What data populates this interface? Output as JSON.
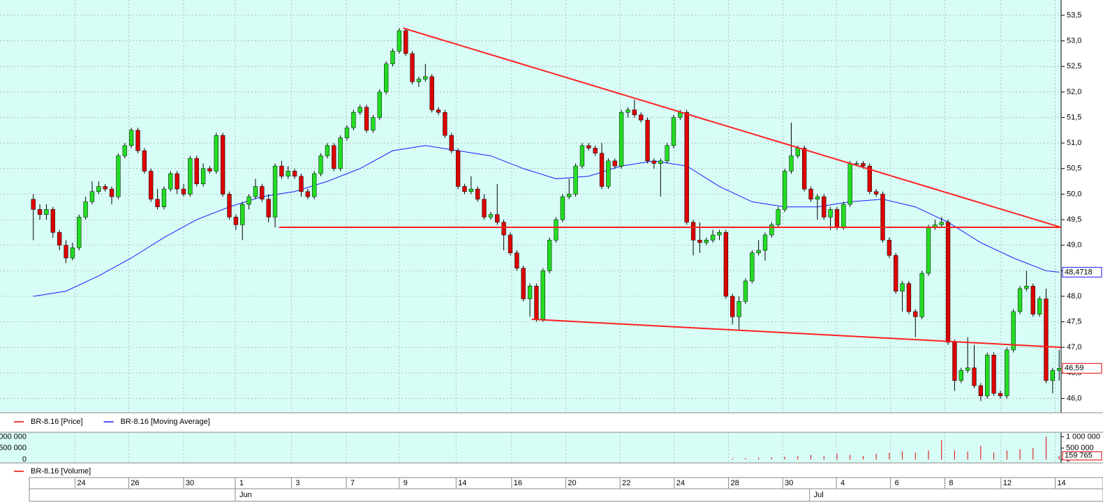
{
  "chart_data": {
    "type": "candlestick",
    "up_color": "#22dd22",
    "down_color": "#dd0000",
    "ylim": [
      45.72,
      53.8
    ],
    "yticks": [
      {
        "value": 46.0,
        "label": "46,0"
      },
      {
        "value": 46.5,
        "label": "46,5"
      },
      {
        "value": 47.0,
        "label": "47,0"
      },
      {
        "value": 47.5,
        "label": "47,5"
      },
      {
        "value": 48.0,
        "label": "48,0"
      },
      {
        "value": 48.5,
        "label": "48,5"
      },
      {
        "value": 49.0,
        "label": "49,0"
      },
      {
        "value": 49.5,
        "label": "49,5"
      },
      {
        "value": 50.0,
        "label": "50,0"
      },
      {
        "value": 50.5,
        "label": "50,5"
      },
      {
        "value": 51.0,
        "label": "51,0"
      },
      {
        "value": 51.5,
        "label": "51,5"
      },
      {
        "value": 52.0,
        "label": "52,0"
      },
      {
        "value": 52.5,
        "label": "52,5"
      },
      {
        "value": 53.0,
        "label": "53,0"
      },
      {
        "value": 53.5,
        "label": "53,5"
      }
    ],
    "xlim": [
      -5.1,
      157.3
    ],
    "xticks": [
      {
        "value": 6.4,
        "label": "24"
      },
      {
        "value": 14.6,
        "label": "26"
      },
      {
        "value": 23.0,
        "label": "30"
      },
      {
        "value": 30.9,
        "label": "1"
      },
      {
        "value": 39.5,
        "label": "3"
      },
      {
        "value": 47.9,
        "label": "7"
      },
      {
        "value": 56.0,
        "label": "9"
      },
      {
        "value": 64.7,
        "label": "14"
      },
      {
        "value": 73.2,
        "label": "16"
      },
      {
        "value": 81.5,
        "label": "20"
      },
      {
        "value": 89.8,
        "label": "22"
      },
      {
        "value": 98.1,
        "label": "24"
      },
      {
        "value": 106.4,
        "label": "28"
      },
      {
        "value": 114.7,
        "label": "30"
      },
      {
        "value": 122.9,
        "label": "4"
      },
      {
        "value": 131.2,
        "label": "6"
      },
      {
        "value": 139.5,
        "label": "8"
      },
      {
        "value": 148.1,
        "label": "12"
      },
      {
        "value": 156.4,
        "label": "14"
      }
    ],
    "months": [
      {
        "value": 30.9,
        "label": "Jun"
      },
      {
        "value": 118.8,
        "label": "Jul"
      }
    ],
    "candles": [
      [
        49.9,
        50.0,
        49.1,
        49.7
      ],
      [
        49.7,
        49.8,
        49.5,
        49.6
      ],
      [
        49.6,
        49.8,
        49.5,
        49.7
      ],
      [
        49.7,
        49.75,
        49.15,
        49.25
      ],
      [
        49.25,
        49.3,
        48.9,
        49.0
      ],
      [
        49.0,
        49.1,
        48.65,
        48.75
      ],
      [
        48.75,
        49.05,
        48.7,
        48.95
      ],
      [
        48.95,
        49.6,
        48.9,
        49.55
      ],
      [
        49.55,
        49.95,
        49.5,
        49.85
      ],
      [
        49.85,
        50.25,
        49.8,
        50.05
      ],
      [
        50.05,
        50.25,
        50.0,
        50.15
      ],
      [
        50.15,
        50.2,
        50.05,
        50.1
      ],
      [
        50.1,
        50.15,
        49.8,
        49.95
      ],
      [
        49.95,
        50.8,
        49.9,
        50.75
      ],
      [
        50.75,
        51.0,
        50.7,
        50.95
      ],
      [
        50.95,
        51.3,
        50.9,
        51.25
      ],
      [
        51.25,
        51.3,
        50.8,
        50.85
      ],
      [
        50.85,
        50.9,
        50.4,
        50.45
      ],
      [
        50.45,
        50.5,
        49.85,
        49.9
      ],
      [
        49.9,
        50.1,
        49.7,
        49.75
      ],
      [
        49.75,
        50.15,
        49.7,
        50.1
      ],
      [
        50.1,
        50.45,
        50.05,
        50.4
      ],
      [
        50.4,
        50.45,
        50.0,
        50.1
      ],
      [
        50.1,
        50.2,
        49.95,
        50.0
      ],
      [
        50.0,
        50.75,
        49.95,
        50.7
      ],
      [
        50.7,
        50.75,
        50.15,
        50.2
      ],
      [
        50.2,
        50.6,
        50.15,
        50.5
      ],
      [
        50.5,
        50.55,
        50.4,
        50.45
      ],
      [
        50.45,
        51.2,
        50.4,
        51.15
      ],
      [
        51.15,
        51.2,
        49.95,
        50.0
      ],
      [
        50.0,
        50.05,
        49.5,
        49.55
      ],
      [
        49.55,
        49.6,
        49.3,
        49.4
      ],
      [
        49.4,
        49.85,
        49.1,
        49.8
      ],
      [
        49.8,
        50.0,
        49.7,
        49.95
      ],
      [
        49.95,
        50.3,
        49.9,
        50.15
      ],
      [
        50.15,
        50.2,
        49.85,
        49.9
      ],
      [
        49.9,
        50.0,
        49.45,
        49.55
      ],
      [
        49.55,
        50.6,
        49.35,
        50.55
      ],
      [
        50.55,
        50.65,
        50.3,
        50.35
      ],
      [
        50.35,
        50.55,
        50.3,
        50.45
      ],
      [
        50.45,
        50.5,
        50.3,
        50.35
      ],
      [
        50.35,
        50.4,
        49.95,
        50.05
      ],
      [
        50.05,
        50.1,
        49.9,
        49.95
      ],
      [
        49.95,
        50.45,
        49.9,
        50.4
      ],
      [
        50.4,
        50.8,
        50.35,
        50.75
      ],
      [
        50.75,
        51.0,
        50.7,
        50.95
      ],
      [
        50.95,
        51.0,
        50.45,
        50.5
      ],
      [
        50.5,
        51.15,
        50.45,
        51.1
      ],
      [
        51.1,
        51.35,
        51.05,
        51.3
      ],
      [
        51.3,
        51.65,
        51.25,
        51.6
      ],
      [
        51.6,
        51.75,
        51.55,
        51.7
      ],
      [
        51.7,
        51.75,
        51.2,
        51.25
      ],
      [
        51.25,
        51.55,
        51.2,
        51.5
      ],
      [
        51.5,
        52.05,
        51.45,
        52.0
      ],
      [
        52.0,
        52.6,
        51.95,
        52.55
      ],
      [
        52.55,
        52.85,
        52.5,
        52.8
      ],
      [
        52.8,
        53.25,
        52.75,
        53.2
      ],
      [
        53.2,
        53.25,
        52.7,
        52.75
      ],
      [
        52.75,
        52.8,
        52.15,
        52.2
      ],
      [
        52.2,
        52.3,
        52.1,
        52.25
      ],
      [
        52.25,
        52.55,
        52.2,
        52.3
      ],
      [
        52.3,
        52.35,
        51.6,
        51.65
      ],
      [
        51.65,
        51.7,
        51.55,
        51.6
      ],
      [
        51.6,
        51.65,
        51.1,
        51.15
      ],
      [
        51.15,
        51.2,
        50.8,
        50.85
      ],
      [
        50.85,
        50.9,
        50.1,
        50.15
      ],
      [
        50.15,
        50.2,
        50.0,
        50.05
      ],
      [
        50.05,
        50.35,
        50.0,
        50.1
      ],
      [
        50.1,
        50.15,
        49.85,
        49.9
      ],
      [
        49.9,
        50.0,
        49.5,
        49.55
      ],
      [
        49.55,
        49.65,
        49.5,
        49.6
      ],
      [
        49.6,
        50.2,
        49.4,
        49.45
      ],
      [
        49.45,
        49.5,
        48.9,
        49.2
      ],
      [
        49.2,
        49.25,
        48.8,
        48.85
      ],
      [
        48.85,
        48.9,
        48.5,
        48.55
      ],
      [
        48.55,
        48.6,
        47.9,
        47.95
      ],
      [
        47.95,
        48.25,
        47.6,
        48.2
      ],
      [
        48.2,
        48.25,
        47.5,
        47.55
      ],
      [
        47.55,
        48.55,
        47.5,
        48.5
      ],
      [
        48.5,
        49.15,
        48.45,
        49.1
      ],
      [
        49.1,
        49.55,
        49.05,
        49.5
      ],
      [
        49.5,
        50.0,
        49.45,
        49.95
      ],
      [
        49.95,
        50.3,
        49.9,
        50.0
      ],
      [
        50.0,
        50.6,
        49.95,
        50.55
      ],
      [
        50.55,
        51.0,
        50.5,
        50.95
      ],
      [
        50.95,
        51.0,
        50.85,
        50.9
      ],
      [
        50.9,
        50.95,
        50.75,
        50.8
      ],
      [
        50.8,
        51.0,
        50.1,
        50.15
      ],
      [
        50.15,
        50.7,
        50.1,
        50.65
      ],
      [
        50.65,
        50.7,
        50.5,
        50.55
      ],
      [
        50.55,
        51.65,
        50.5,
        51.6
      ],
      [
        51.6,
        51.7,
        51.5,
        51.65
      ],
      [
        51.65,
        51.85,
        51.5,
        51.55
      ],
      [
        51.55,
        51.6,
        51.4,
        51.45
      ],
      [
        51.45,
        51.5,
        50.6,
        50.65
      ],
      [
        50.65,
        50.7,
        50.5,
        50.6
      ],
      [
        50.6,
        50.7,
        49.95,
        50.65
      ],
      [
        50.65,
        51.0,
        50.6,
        50.95
      ],
      [
        50.95,
        51.55,
        50.9,
        51.5
      ],
      [
        51.5,
        51.65,
        51.45,
        51.6
      ],
      [
        51.6,
        51.65,
        49.4,
        49.45
      ],
      [
        49.45,
        49.5,
        48.8,
        49.1
      ],
      [
        49.1,
        49.45,
        48.85,
        49.05
      ],
      [
        49.05,
        49.15,
        49.0,
        49.1
      ],
      [
        49.1,
        49.3,
        49.05,
        49.2
      ],
      [
        49.2,
        49.3,
        49.1,
        49.25
      ],
      [
        49.25,
        49.3,
        47.95,
        48.0
      ],
      [
        48.0,
        48.05,
        47.45,
        47.6
      ],
      [
        47.6,
        48.0,
        47.35,
        47.9
      ],
      [
        47.9,
        48.35,
        47.85,
        48.3
      ],
      [
        48.3,
        48.9,
        48.25,
        48.85
      ],
      [
        48.85,
        49.1,
        48.8,
        48.9
      ],
      [
        48.9,
        49.25,
        48.7,
        49.2
      ],
      [
        49.2,
        49.45,
        49.15,
        49.4
      ],
      [
        49.4,
        49.75,
        49.35,
        49.7
      ],
      [
        49.7,
        50.5,
        49.65,
        50.45
      ],
      [
        50.45,
        51.4,
        50.4,
        50.75
      ],
      [
        50.75,
        50.95,
        50.7,
        50.9
      ],
      [
        50.9,
        50.95,
        50.05,
        50.1
      ],
      [
        50.1,
        50.15,
        49.85,
        49.9
      ],
      [
        49.9,
        50.0,
        49.5,
        49.95
      ],
      [
        49.95,
        50.0,
        49.5,
        49.55
      ],
      [
        49.55,
        49.75,
        49.3,
        49.7
      ],
      [
        49.7,
        49.75,
        49.3,
        49.35
      ],
      [
        49.35,
        49.85,
        49.3,
        49.8
      ],
      [
        49.8,
        50.65,
        49.75,
        50.6
      ],
      [
        50.6,
        50.65,
        50.55,
        50.6
      ],
      [
        50.6,
        50.65,
        50.5,
        50.55
      ],
      [
        50.55,
        50.6,
        50.0,
        50.05
      ],
      [
        50.05,
        50.1,
        49.95,
        50.0
      ],
      [
        50.0,
        50.05,
        49.05,
        49.1
      ],
      [
        49.1,
        49.15,
        48.75,
        48.8
      ],
      [
        48.8,
        48.85,
        48.05,
        48.1
      ],
      [
        48.1,
        48.3,
        47.7,
        48.25
      ],
      [
        48.25,
        48.3,
        47.65,
        47.7
      ],
      [
        47.7,
        47.75,
        47.2,
        47.6
      ],
      [
        47.6,
        48.5,
        47.55,
        48.45
      ],
      [
        48.45,
        49.4,
        48.4,
        49.35
      ],
      [
        49.35,
        49.5,
        49.3,
        49.4
      ],
      [
        49.4,
        49.55,
        49.35,
        49.45
      ],
      [
        49.45,
        49.5,
        47.05,
        47.1
      ],
      [
        47.1,
        47.15,
        46.15,
        46.35
      ],
      [
        46.35,
        46.6,
        46.3,
        46.55
      ],
      [
        46.55,
        47.2,
        46.5,
        46.6
      ],
      [
        46.6,
        47.05,
        46.2,
        46.25
      ],
      [
        46.25,
        46.3,
        45.95,
        46.05
      ],
      [
        46.05,
        46.9,
        46.0,
        46.85
      ],
      [
        46.85,
        46.9,
        46.05,
        46.1
      ],
      [
        46.1,
        46.15,
        46.0,
        46.05
      ],
      [
        46.05,
        47.0,
        46.0,
        46.95
      ],
      [
        46.95,
        47.75,
        46.9,
        47.7
      ],
      [
        47.7,
        48.2,
        47.65,
        48.15
      ],
      [
        48.15,
        48.5,
        48.1,
        48.2
      ],
      [
        48.2,
        48.25,
        47.6,
        47.65
      ],
      [
        47.65,
        48.0,
        47.6,
        47.95
      ],
      [
        47.95,
        48.15,
        46.3,
        46.35
      ],
      [
        46.35,
        46.6,
        46.1,
        46.55
      ],
      [
        46.55,
        46.95,
        46.35,
        46.59
      ]
    ],
    "last_price": {
      "value": 46.59,
      "label": "46,59"
    },
    "series": [
      {
        "name": "BR-8.16 [Price]",
        "color": "#e00000"
      },
      {
        "name": "BR-8.16 [Moving Average]",
        "color": "#1a1aff",
        "x": [
          0,
          5,
          10,
          15,
          20,
          25,
          30,
          35,
          40,
          45,
          50,
          55,
          60,
          65,
          70,
          75,
          80,
          85,
          90,
          95,
          100,
          105,
          110,
          115,
          120,
          125,
          130,
          135,
          140,
          145,
          150,
          155,
          157
        ],
        "values": [
          48.0,
          48.1,
          48.4,
          48.75,
          49.15,
          49.5,
          49.75,
          49.95,
          50.05,
          50.25,
          50.5,
          50.85,
          50.95,
          50.85,
          50.75,
          50.5,
          50.3,
          50.35,
          50.55,
          50.65,
          50.55,
          50.15,
          49.85,
          49.75,
          49.75,
          49.85,
          49.9,
          49.75,
          49.45,
          49.05,
          48.75,
          48.5,
          48.4718
        ],
        "last": {
          "value": 48.4718,
          "label": "48,4718"
        }
      }
    ],
    "trendlines": [
      {
        "color": "#ff2020",
        "x": [
          56.6,
          157.3
        ],
        "values": [
          53.25,
          49.35
        ]
      },
      {
        "color": "#ff2020",
        "x": [
          37.6,
          157.3
        ],
        "values": [
          49.35,
          49.35
        ]
      },
      {
        "color": "#ff2020",
        "x": [
          76.3,
          157.3
        ],
        "values": [
          47.55,
          47.0
        ]
      }
    ],
    "volume": {
      "name": "BR-8.16 [Volume]",
      "color": "#e00000",
      "ylim": [
        0,
        1321000
      ],
      "yticks": [
        {
          "value": 0,
          "label": "0"
        },
        {
          "value": 500000,
          "label": "500 000"
        },
        {
          "value": 1000000,
          "label": "1 000 000"
        }
      ],
      "x": [
        107,
        109,
        111,
        113,
        115,
        117,
        119,
        121,
        123,
        125,
        127,
        129,
        131,
        133,
        135,
        137,
        139,
        141,
        143,
        145,
        147,
        149,
        151,
        153,
        155,
        157
      ],
      "values": [
        50000,
        60000,
        80000,
        100000,
        120000,
        150000,
        200000,
        150000,
        250000,
        200000,
        150000,
        250000,
        300000,
        350000,
        300000,
        400000,
        850000,
        400000,
        350000,
        600000,
        300000,
        400000,
        450000,
        500000,
        1000000,
        159765
      ],
      "last": {
        "value": 159765,
        "label": "159 765"
      }
    }
  }
}
